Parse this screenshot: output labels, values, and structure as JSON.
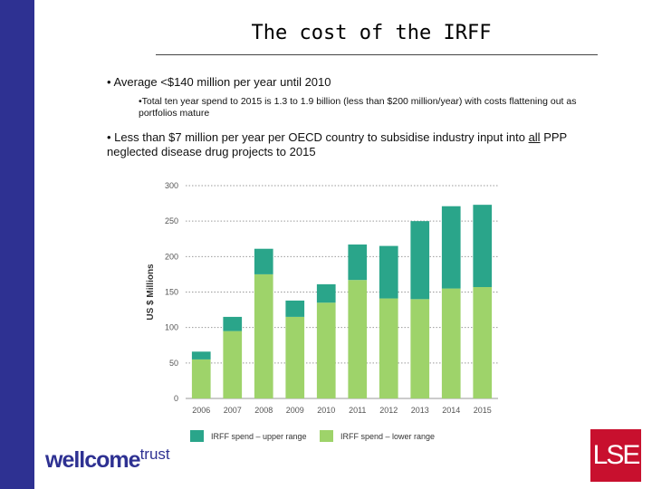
{
  "slide": {
    "title": "The cost of the IRFF",
    "bullet1": "• Average <$140 million per year until 2010",
    "bullet2": "•Total ten year spend to 2015 is 1.3 to 1.9 billion (less than $200 million/year)  with costs flattening out as portfolios mature",
    "bullet3_before": "• Less than $7 million per year per OECD country to subsidise industry input into ",
    "bullet3_underlined": "all",
    "bullet3_after": " PPP neglected disease drug projects to 2015"
  },
  "logos": {
    "wellcome_main": "wellcome",
    "wellcome_super": "trust",
    "lse": "LSE"
  },
  "colors": {
    "sidebar": "#2e3192",
    "upper": "#2aa58a",
    "lower": "#9ed36a",
    "grid": "#9a9a9a",
    "axis_text": "#555555"
  },
  "chart_data": {
    "type": "bar",
    "stacked": true,
    "categories": [
      "2006",
      "2007",
      "2008",
      "2009",
      "2010",
      "2011",
      "2012",
      "2013",
      "2014",
      "2015"
    ],
    "series": [
      {
        "name": "IRFF spend – lower range",
        "values": [
          55,
          95,
          175,
          115,
          135,
          167,
          141,
          140,
          155,
          157
        ]
      },
      {
        "name": "IRFF spend – upper range",
        "values": [
          11,
          20,
          36,
          23,
          26,
          50,
          74,
          110,
          116,
          116
        ]
      }
    ],
    "ylabel": "US $ Millions",
    "ylim": [
      0,
      300
    ],
    "yticks": [
      0,
      50,
      100,
      150,
      200,
      250,
      300
    ],
    "grid": true,
    "legend_position": "bottom"
  }
}
